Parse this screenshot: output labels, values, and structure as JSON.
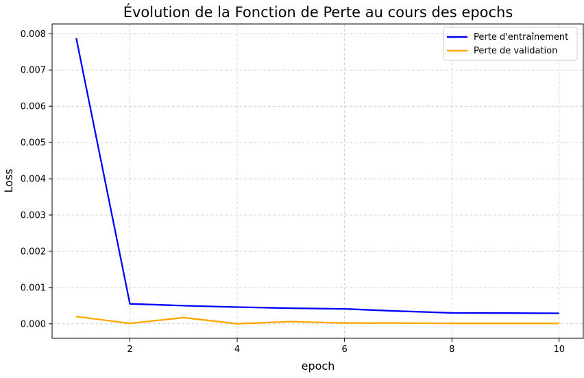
{
  "chart_data": {
    "type": "line",
    "title": "Évolution de la Fonction de Perte au cours des epochs",
    "xlabel": "epoch",
    "ylabel": "Loss",
    "x": [
      1,
      2,
      3,
      4,
      5,
      6,
      7,
      8,
      9,
      10
    ],
    "xlim": [
      0.55,
      10.45
    ],
    "ylim": [
      -0.0004,
      0.00827
    ],
    "x_ticks": [
      2,
      4,
      6,
      8,
      10
    ],
    "x_tick_labels": [
      "2",
      "4",
      "6",
      "8",
      "10"
    ],
    "y_ticks": [
      0,
      0.001,
      0.002,
      0.003,
      0.004,
      0.005,
      0.006,
      0.007,
      0.008
    ],
    "y_tick_labels": [
      "0.000",
      "0.001",
      "0.002",
      "0.003",
      "0.004",
      "0.005",
      "0.006",
      "0.007",
      "0.008"
    ],
    "grid": true,
    "legend_position": "top-right",
    "series": [
      {
        "name": "Perte d'entraînement",
        "color": "#0000ff",
        "values": [
          0.00788,
          0.00055,
          0.0005,
          0.00046,
          0.00043,
          0.00041,
          0.00035,
          0.0003,
          0.000295,
          0.00029
        ]
      },
      {
        "name": "Perte de validation",
        "color": "#ffa500",
        "values": [
          0.0002,
          1e-05,
          0.00017,
          0.0,
          6e-05,
          2e-05,
          2e-05,
          1e-05,
          1e-05,
          1e-05
        ]
      }
    ]
  }
}
